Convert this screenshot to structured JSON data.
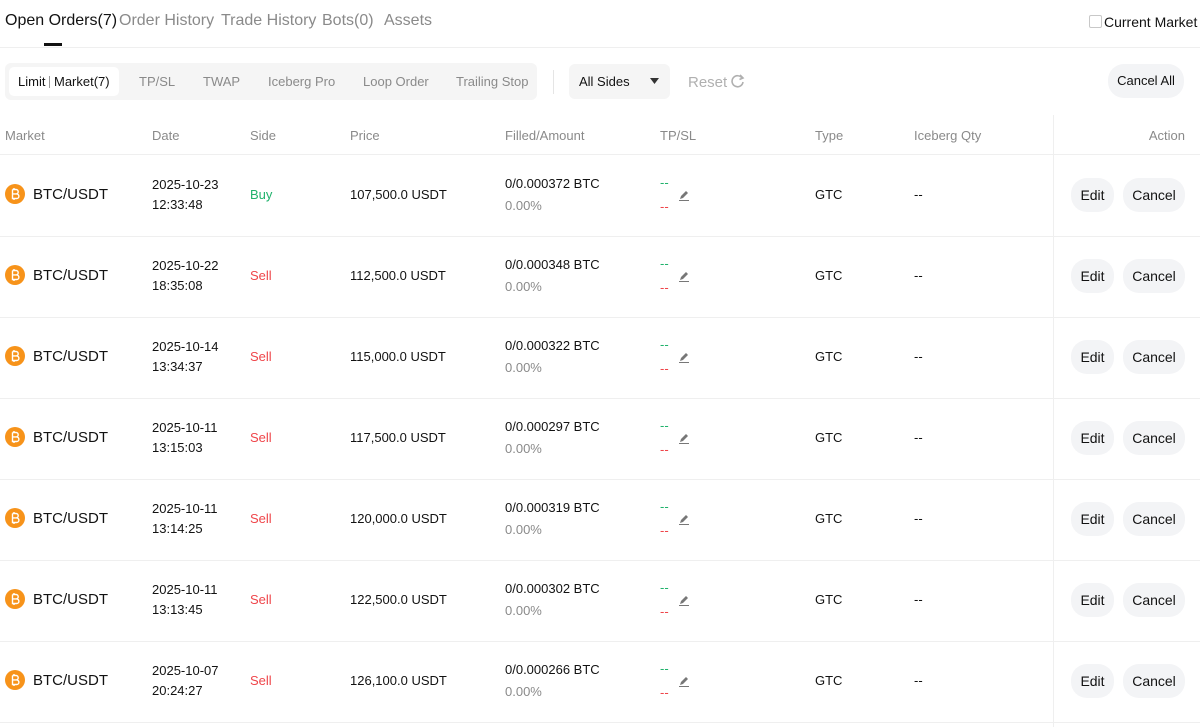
{
  "tabs": [
    "Open Orders(7)",
    "Order History",
    "Trade History",
    "Bots(0)",
    "Assets"
  ],
  "current_market": "Current Market",
  "subtabs": {
    "limit": "Limit",
    "market": "Market(7)",
    "others": [
      "TP/SL",
      "TWAP",
      "Iceberg Pro",
      "Loop Order",
      "Trailing Stop"
    ]
  },
  "side_filter": "All Sides",
  "reset": "Reset",
  "cancel_all": "Cancel All",
  "side_colors": {
    "Buy": "#20b26c",
    "Sell": "#ef454a"
  },
  "table": {
    "headers": [
      "Market",
      "Date",
      "Side",
      "Price",
      "Filled/Amount",
      "TP/SL",
      "Type",
      "Iceberg Qty",
      "Action"
    ],
    "rows": [
      {
        "market": "BTC/USDT",
        "date": "2025-10-23",
        "time": "12:33:48",
        "side": "Buy",
        "price": "107,500.0 USDT",
        "filled": "0/0.000372 BTC",
        "percent": "0.00%",
        "tp": "--",
        "sl": "--",
        "type": "GTC",
        "iceberg": "--",
        "edit": "Edit",
        "cancel": "Cancel"
      },
      {
        "market": "BTC/USDT",
        "date": "2025-10-22",
        "time": "18:35:08",
        "side": "Sell",
        "price": "112,500.0 USDT",
        "filled": "0/0.000348 BTC",
        "percent": "0.00%",
        "tp": "--",
        "sl": "--",
        "type": "GTC",
        "iceberg": "--",
        "edit": "Edit",
        "cancel": "Cancel"
      },
      {
        "market": "BTC/USDT",
        "date": "2025-10-14",
        "time": "13:34:37",
        "side": "Sell",
        "price": "115,000.0 USDT",
        "filled": "0/0.000322 BTC",
        "percent": "0.00%",
        "tp": "--",
        "sl": "--",
        "type": "GTC",
        "iceberg": "--",
        "edit": "Edit",
        "cancel": "Cancel"
      },
      {
        "market": "BTC/USDT",
        "date": "2025-10-11",
        "time": "13:15:03",
        "side": "Sell",
        "price": "117,500.0 USDT",
        "filled": "0/0.000297 BTC",
        "percent": "0.00%",
        "tp": "--",
        "sl": "--",
        "type": "GTC",
        "iceberg": "--",
        "edit": "Edit",
        "cancel": "Cancel"
      },
      {
        "market": "BTC/USDT",
        "date": "2025-10-11",
        "time": "13:14:25",
        "side": "Sell",
        "price": "120,000.0 USDT",
        "filled": "0/0.000319 BTC",
        "percent": "0.00%",
        "tp": "--",
        "sl": "--",
        "type": "GTC",
        "iceberg": "--",
        "edit": "Edit",
        "cancel": "Cancel"
      },
      {
        "market": "BTC/USDT",
        "date": "2025-10-11",
        "time": "13:13:45",
        "side": "Sell",
        "price": "122,500.0 USDT",
        "filled": "0/0.000302 BTC",
        "percent": "0.00%",
        "tp": "--",
        "sl": "--",
        "type": "GTC",
        "iceberg": "--",
        "edit": "Edit",
        "cancel": "Cancel"
      },
      {
        "market": "BTC/USDT",
        "date": "2025-10-07",
        "time": "20:24:27",
        "side": "Sell",
        "price": "126,100.0 USDT",
        "filled": "0/0.000266 BTC",
        "percent": "0.00%",
        "tp": "--",
        "sl": "--",
        "type": "GTC",
        "iceberg": "--",
        "edit": "Edit",
        "cancel": "Cancel"
      }
    ]
  }
}
